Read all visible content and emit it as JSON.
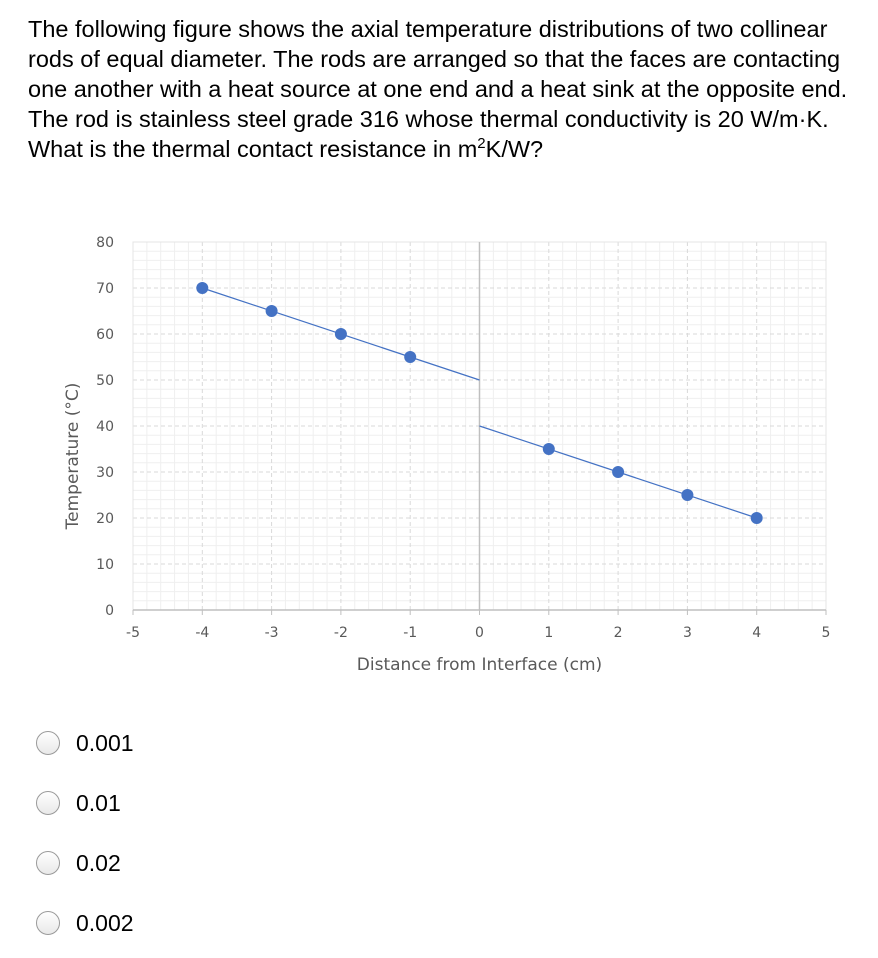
{
  "question": {
    "text": "The following figure shows the axial temperature distributions of two collinear rods of equal diameter.  The rods are arranged so that the faces are contacting one another with a heat source at one end and a heat sink at the opposite end.  The rod is stainless steel grade 316 whose thermal conductivity is 20 W/m·K.  What is the thermal contact resistance in m",
    "superscript": "2",
    "unit_tail": "K/W?"
  },
  "chart_data": {
    "type": "scatter",
    "xlabel": "Distance from Interface (cm)",
    "ylabel": "Temperature (°C)",
    "xlim": [
      -5,
      5
    ],
    "ylim": [
      0,
      80
    ],
    "xticks": [
      "-5",
      "-4",
      "-3",
      "-2",
      "-1",
      "0",
      "1",
      "2",
      "3",
      "4",
      "5"
    ],
    "yticks": [
      "0",
      "10",
      "20",
      "30",
      "40",
      "50",
      "60",
      "70",
      "80"
    ],
    "grid": true,
    "series": [
      {
        "x": [
          -4,
          -3,
          -2,
          -1,
          1,
          2,
          3,
          4
        ],
        "y": [
          70,
          65,
          60,
          55,
          35,
          30,
          25,
          20
        ]
      }
    ],
    "fit_lines": [
      {
        "x": [
          -4,
          0
        ],
        "y": [
          70,
          50
        ]
      },
      {
        "x": [
          0,
          4
        ],
        "y": [
          40,
          20
        ]
      }
    ],
    "colors": {
      "marker": "#4472C4",
      "line": "#4472C4",
      "axis": "#BFBFBF",
      "grid": "#D9D9D9",
      "text": "#595959"
    }
  },
  "options": [
    {
      "label": "0.001"
    },
    {
      "label": "0.01"
    },
    {
      "label": "0.02"
    },
    {
      "label": "0.002"
    }
  ]
}
